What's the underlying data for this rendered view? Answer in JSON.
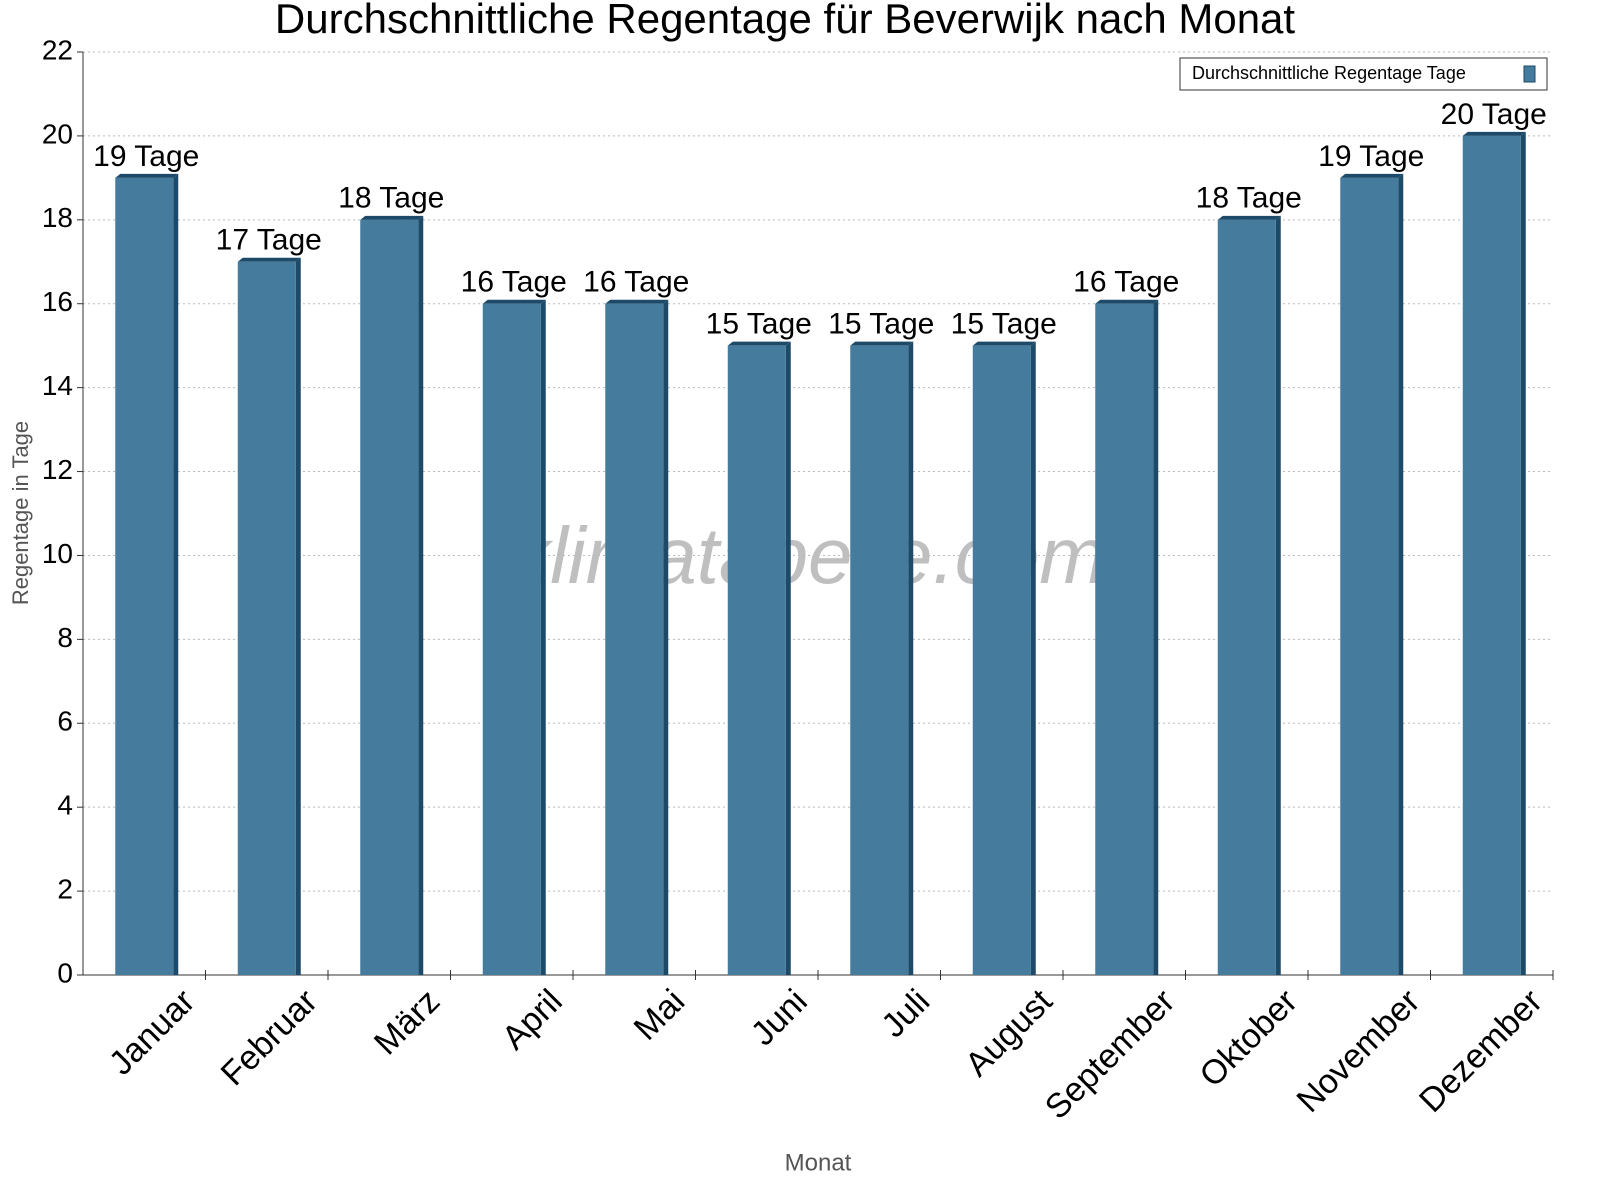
{
  "chart_data": {
    "type": "bar",
    "title": "Durchschnittliche Regentage für Beverwijk nach Monat",
    "x_label": "Monat",
    "y_label": "Regentage in Tage",
    "watermark": "klimatabelle.com",
    "categories": [
      "Januar",
      "Februar",
      "März",
      "April",
      "Mai",
      "Juni",
      "Juli",
      "August",
      "September",
      "Oktober",
      "November",
      "Dezember"
    ],
    "series": [
      {
        "name": "Durchschnittliche Regentage Tage",
        "color": "#457b9d",
        "values": [
          19,
          17,
          18,
          16,
          16,
          15,
          15,
          15,
          16,
          18,
          19,
          20
        ],
        "value_labels": [
          "19 Tage",
          "17 Tage",
          "18 Tage",
          "16 Tage",
          "16 Tage",
          "15 Tage",
          "15 Tage",
          "15 Tage",
          "16 Tage",
          "18 Tage",
          "19 Tage",
          "20 Tage"
        ]
      }
    ],
    "ylim": [
      0,
      22
    ],
    "yticks": [
      0,
      2,
      4,
      6,
      8,
      10,
      12,
      14,
      16,
      18,
      20,
      22
    ],
    "grid": true,
    "legend": "top-right"
  }
}
